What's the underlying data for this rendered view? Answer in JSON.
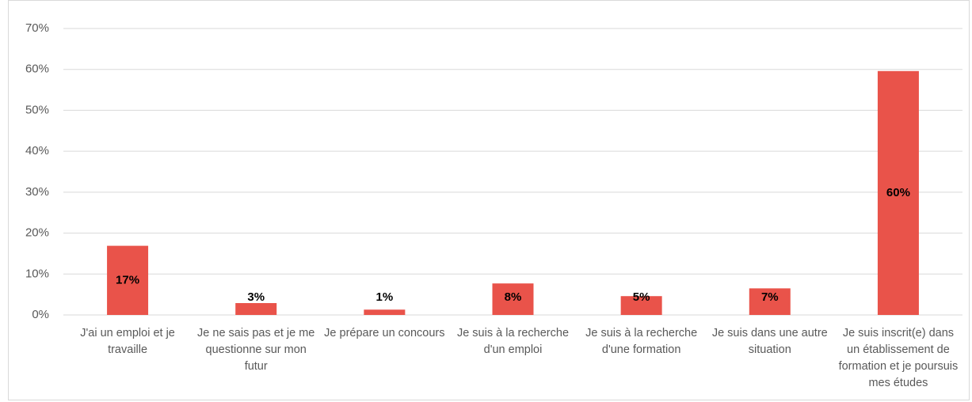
{
  "chart_data": {
    "type": "bar",
    "categories": [
      "J'ai un emploi et je travaille",
      "Je ne sais pas et je me questionne sur mon futur",
      "Je prépare un concours",
      "Je suis à la recherche d'un emploi",
      "Je suis à la recherche d'une formation",
      "Je suis dans une autre situation",
      "Je suis inscrit(e) dans un établissement de formation et je poursuis mes études"
    ],
    "values": [
      16.9,
      2.9,
      1.3,
      7.7,
      4.6,
      6.5,
      59.6
    ],
    "value_labels": [
      "17%",
      "3%",
      "1%",
      "8%",
      "5%",
      "7%",
      "60%"
    ],
    "color": "#e9534a",
    "ylim": [
      0,
      70
    ],
    "yticks": [
      {
        "value": 0,
        "label": "0%"
      },
      {
        "value": 10,
        "label": "10%"
      },
      {
        "value": 20,
        "label": "20%"
      },
      {
        "value": 30,
        "label": "30%"
      },
      {
        "value": 40,
        "label": "40%"
      },
      {
        "value": 50,
        "label": "50%"
      },
      {
        "value": 60,
        "label": "60%"
      },
      {
        "value": 70,
        "label": "70%"
      }
    ],
    "grid": true
  }
}
